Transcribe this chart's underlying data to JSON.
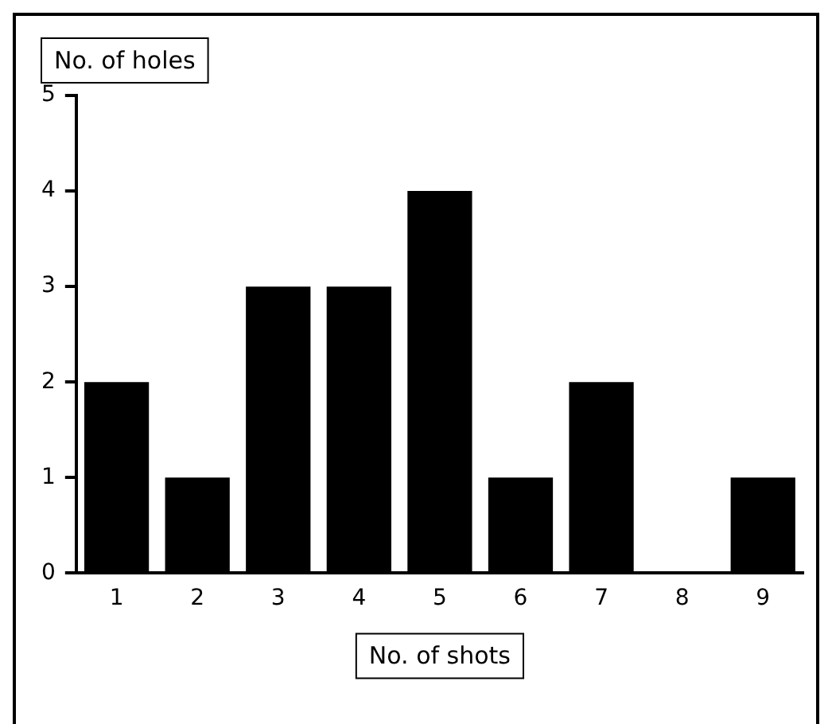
{
  "chart_data": {
    "type": "bar",
    "categories": [
      "1",
      "2",
      "3",
      "4",
      "5",
      "6",
      "7",
      "8",
      "9"
    ],
    "values": [
      2,
      1,
      3,
      3,
      4,
      1,
      2,
      0,
      1
    ],
    "color": "#000000",
    "xlabel": "No. of shots",
    "ylabel": "No. of holes",
    "ylim": [
      0,
      5
    ],
    "yticks": [
      0,
      1,
      2,
      3,
      4,
      5
    ],
    "grid": false,
    "legend": false
  }
}
